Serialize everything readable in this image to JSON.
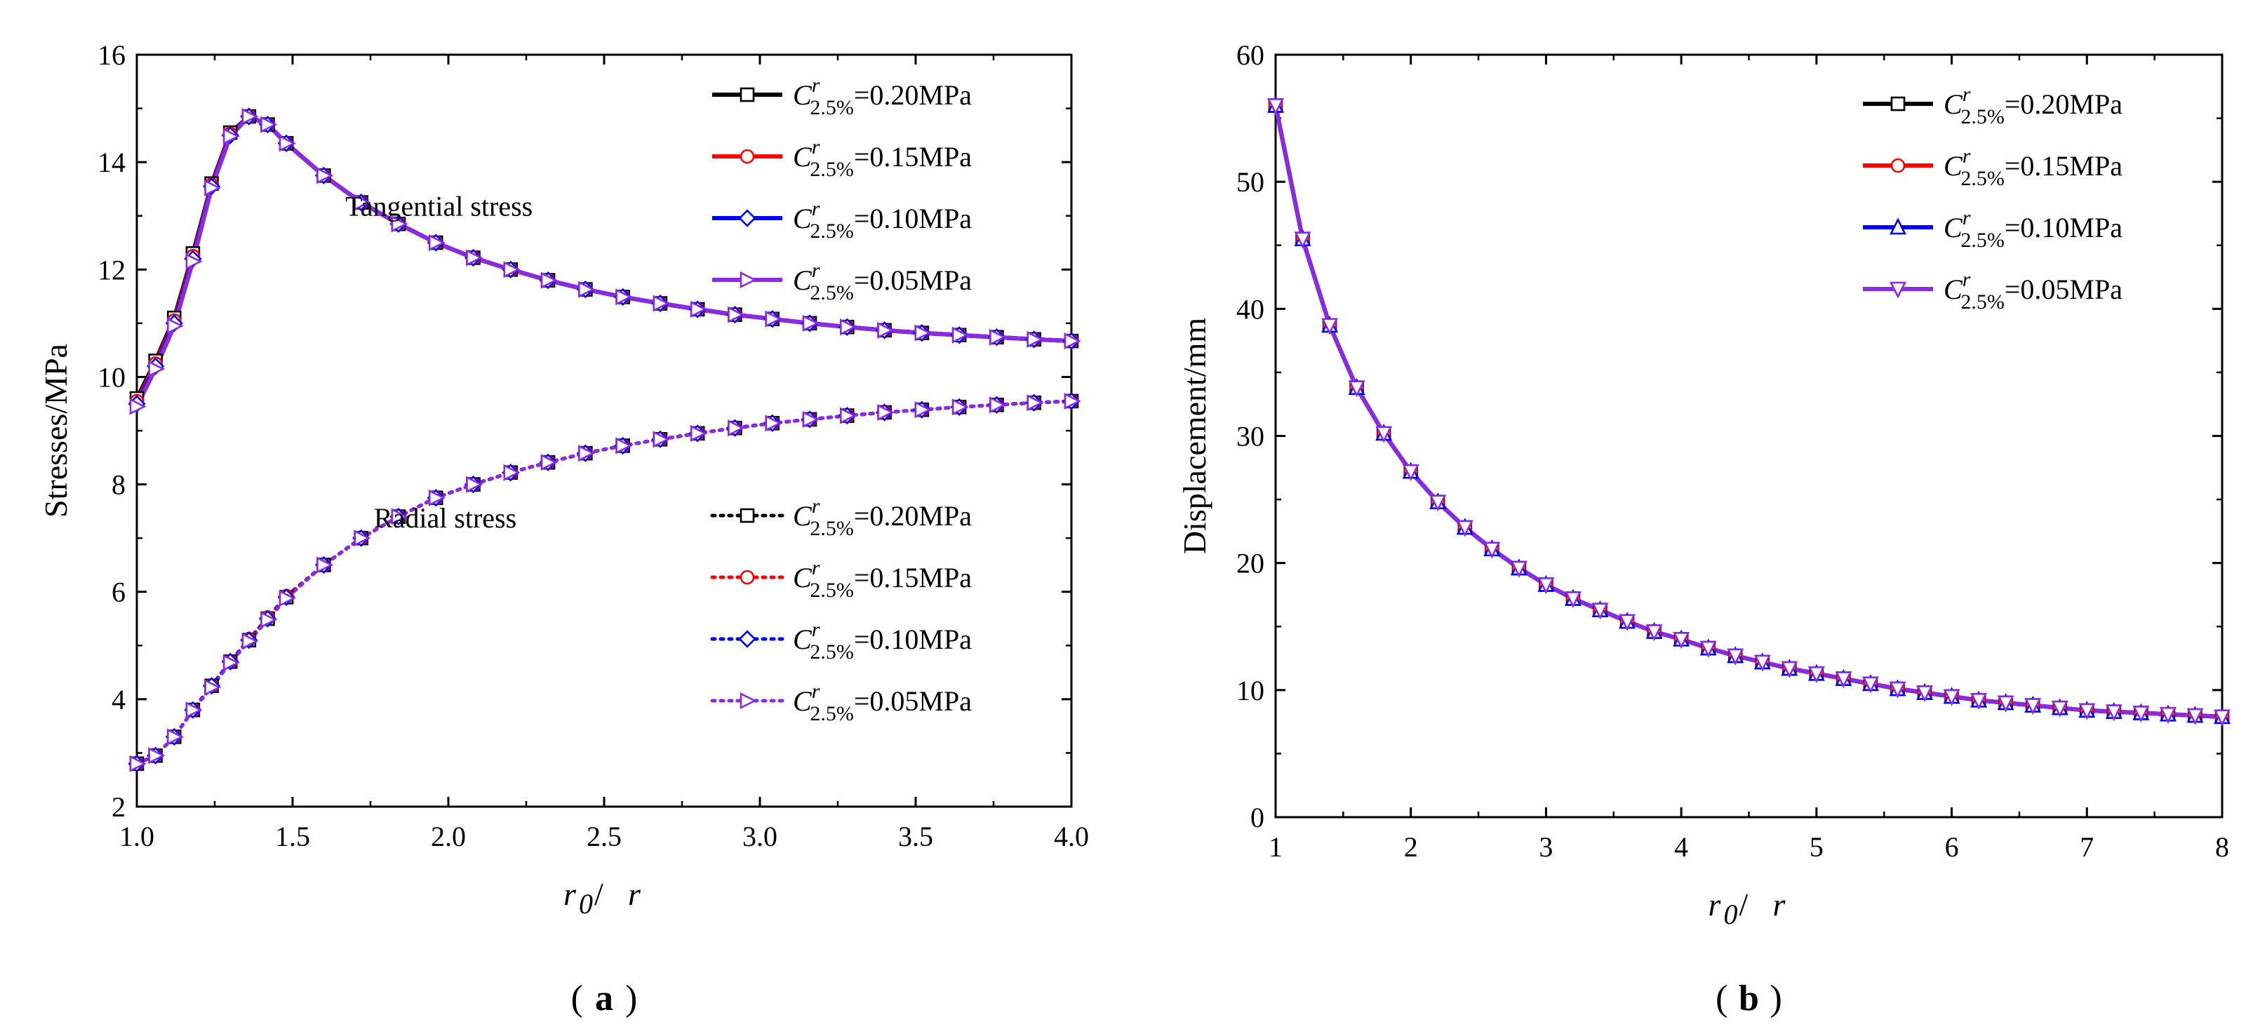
{
  "chart_data": [
    {
      "type": "line",
      "panel_label": "a",
      "xlabel_main": "r",
      "xlabel_sub": "0",
      "xlabel_sep": " / ",
      "xlabel_tail": "r",
      "ylabel": "Stresses/MPa",
      "xlim": [
        1.0,
        4.0
      ],
      "ylim": [
        2,
        16
      ],
      "xticks": [
        "1.0",
        "1.5",
        "2.0",
        "2.5",
        "3.0",
        "3.5",
        "4.0"
      ],
      "yticks": [
        "2",
        "4",
        "6",
        "8",
        "10",
        "12",
        "14",
        "16"
      ],
      "annotations": [
        {
          "text": "Tangential stress",
          "x": 1.97,
          "y": 13.0
        },
        {
          "text": "Radial stress",
          "x": 1.99,
          "y": 7.2
        }
      ],
      "x": [
        1.0,
        1.06,
        1.12,
        1.18,
        1.24,
        1.3,
        1.36,
        1.42,
        1.48,
        1.6,
        1.72,
        1.84,
        1.96,
        2.08,
        2.2,
        2.32,
        2.44,
        2.56,
        2.68,
        2.8,
        2.92,
        3.04,
        3.16,
        3.28,
        3.4,
        3.52,
        3.64,
        3.76,
        3.88,
        4.0
      ],
      "series": [
        {
          "name": "C_{2.5%}^r=0.20MPa",
          "group": "tangential",
          "color": "#000000",
          "marker": "square",
          "dash": "solid",
          "values": [
            9.6,
            10.3,
            11.1,
            12.3,
            13.6,
            14.55,
            14.85,
            14.7,
            14.35,
            13.75,
            13.25,
            12.85,
            12.5,
            12.22,
            12.0,
            11.8,
            11.63,
            11.49,
            11.37,
            11.26,
            11.16,
            11.08,
            11.0,
            10.93,
            10.87,
            10.82,
            10.78,
            10.74,
            10.7,
            10.67
          ]
        },
        {
          "name": "C_{2.5%}^r=0.15MPa",
          "group": "tangential",
          "color": "#ff0000",
          "marker": "circle",
          "dash": "solid",
          "values": [
            9.55,
            10.25,
            11.05,
            12.25,
            13.58,
            14.53,
            14.85,
            14.7,
            14.35,
            13.75,
            13.25,
            12.85,
            12.5,
            12.22,
            12.0,
            11.8,
            11.63,
            11.49,
            11.37,
            11.26,
            11.16,
            11.08,
            11.0,
            10.93,
            10.87,
            10.82,
            10.78,
            10.74,
            10.7,
            10.67
          ]
        },
        {
          "name": "C_{2.5%}^r=0.10MPa",
          "group": "tangential",
          "color": "#0000ff",
          "marker": "diamond",
          "dash": "solid",
          "values": [
            9.5,
            10.2,
            11.0,
            12.2,
            13.55,
            14.5,
            14.85,
            14.7,
            14.35,
            13.75,
            13.25,
            12.85,
            12.5,
            12.22,
            12.0,
            11.8,
            11.63,
            11.49,
            11.37,
            11.26,
            11.16,
            11.08,
            11.0,
            10.93,
            10.87,
            10.82,
            10.78,
            10.74,
            10.7,
            10.67
          ]
        },
        {
          "name": "C_{2.5%}^r=0.05MPa",
          "group": "tangential",
          "color": "#8a2be2",
          "marker": "triangle-right",
          "dash": "solid",
          "values": [
            9.45,
            10.15,
            10.95,
            12.15,
            13.52,
            14.48,
            14.85,
            14.7,
            14.35,
            13.75,
            13.25,
            12.85,
            12.5,
            12.22,
            12.0,
            11.8,
            11.63,
            11.49,
            11.37,
            11.26,
            11.16,
            11.08,
            11.0,
            10.93,
            10.87,
            10.82,
            10.78,
            10.74,
            10.7,
            10.67
          ]
        },
        {
          "name": "C_{2.5%}^r=0.20MPa",
          "group": "radial",
          "color": "#000000",
          "marker": "square",
          "dash": "dotted",
          "values": [
            2.8,
            2.95,
            3.3,
            3.8,
            4.25,
            4.7,
            5.1,
            5.5,
            5.9,
            6.5,
            7.0,
            7.4,
            7.75,
            8.0,
            8.22,
            8.41,
            8.58,
            8.72,
            8.84,
            8.95,
            9.05,
            9.14,
            9.21,
            9.28,
            9.34,
            9.39,
            9.44,
            9.48,
            9.52,
            9.55
          ]
        },
        {
          "name": "C_{2.5%}^r=0.15MPa",
          "group": "radial",
          "color": "#ff0000",
          "marker": "circle",
          "dash": "dotted",
          "values": [
            2.8,
            2.95,
            3.3,
            3.8,
            4.25,
            4.7,
            5.12,
            5.52,
            5.92,
            6.5,
            7.0,
            7.4,
            7.75,
            8.0,
            8.22,
            8.41,
            8.58,
            8.72,
            8.84,
            8.95,
            9.05,
            9.14,
            9.21,
            9.28,
            9.34,
            9.39,
            9.44,
            9.48,
            9.52,
            9.55
          ]
        },
        {
          "name": "C_{2.5%}^r=0.10MPa",
          "group": "radial",
          "color": "#0000ff",
          "marker": "diamond",
          "dash": "dotted",
          "values": [
            2.8,
            2.95,
            3.3,
            3.8,
            4.25,
            4.7,
            5.1,
            5.5,
            5.9,
            6.5,
            7.0,
            7.4,
            7.75,
            8.0,
            8.22,
            8.41,
            8.58,
            8.72,
            8.84,
            8.95,
            9.05,
            9.14,
            9.21,
            9.28,
            9.34,
            9.39,
            9.44,
            9.48,
            9.52,
            9.55
          ]
        },
        {
          "name": "C_{2.5%}^r=0.05MPa",
          "group": "radial",
          "color": "#8a2be2",
          "marker": "triangle-right",
          "dash": "dotted",
          "values": [
            2.8,
            2.95,
            3.3,
            3.8,
            4.22,
            4.68,
            5.08,
            5.48,
            5.88,
            6.5,
            7.0,
            7.4,
            7.75,
            8.0,
            8.22,
            8.41,
            8.58,
            8.72,
            8.84,
            8.95,
            9.05,
            9.14,
            9.21,
            9.28,
            9.34,
            9.39,
            9.44,
            9.48,
            9.52,
            9.55
          ]
        }
      ]
    },
    {
      "type": "line",
      "panel_label": "b",
      "xlabel_main": "r",
      "xlabel_sub": "0",
      "xlabel_sep": " / ",
      "xlabel_tail": "r",
      "ylabel": "Displacement/mm",
      "xlim": [
        1,
        8
      ],
      "ylim": [
        0,
        60
      ],
      "xticks": [
        "1",
        "2",
        "3",
        "4",
        "5",
        "6",
        "7",
        "8"
      ],
      "yticks": [
        "0",
        "10",
        "20",
        "30",
        "40",
        "50",
        "60"
      ],
      "x": [
        1.0,
        1.2,
        1.4,
        1.6,
        1.8,
        2.0,
        2.2,
        2.4,
        2.6,
        2.8,
        3.0,
        3.2,
        3.4,
        3.6,
        3.8,
        4.0,
        4.2,
        4.4,
        4.6,
        4.8,
        5.0,
        5.2,
        5.4,
        5.6,
        5.8,
        6.0,
        6.2,
        6.4,
        6.6,
        6.8,
        7.0,
        7.2,
        7.4,
        7.6,
        7.8,
        8.0
      ],
      "series": [
        {
          "name": "C_{2.5%}^r=0.20MPa",
          "color": "#000000",
          "marker": "square",
          "values": [
            56.0,
            45.5,
            38.7,
            33.8,
            30.2,
            27.2,
            24.8,
            22.8,
            21.1,
            19.6,
            18.3,
            17.2,
            16.3,
            15.4,
            14.6,
            14.0,
            13.3,
            12.7,
            12.2,
            11.7,
            11.3,
            10.9,
            10.5,
            10.1,
            9.8,
            9.5,
            9.2,
            9.0,
            8.8,
            8.6,
            8.4,
            8.3,
            8.2,
            8.1,
            8.0,
            7.9
          ]
        },
        {
          "name": "C_{2.5%}^r=0.15MPa",
          "color": "#ff0000",
          "marker": "circle",
          "values": [
            56.0,
            45.5,
            38.7,
            33.8,
            30.2,
            27.2,
            24.8,
            22.8,
            21.1,
            19.6,
            18.3,
            17.2,
            16.3,
            15.4,
            14.6,
            14.0,
            13.3,
            12.7,
            12.2,
            11.7,
            11.3,
            10.9,
            10.5,
            10.1,
            9.8,
            9.5,
            9.2,
            9.0,
            8.8,
            8.6,
            8.4,
            8.3,
            8.2,
            8.1,
            8.0,
            7.9
          ]
        },
        {
          "name": "C_{2.5%}^r=0.10MPa",
          "color": "#0000ff",
          "marker": "triangle-up",
          "values": [
            56.0,
            45.5,
            38.7,
            33.8,
            30.2,
            27.2,
            24.8,
            22.8,
            21.1,
            19.6,
            18.3,
            17.2,
            16.3,
            15.4,
            14.6,
            14.0,
            13.3,
            12.7,
            12.2,
            11.7,
            11.3,
            10.9,
            10.5,
            10.1,
            9.8,
            9.5,
            9.2,
            9.0,
            8.8,
            8.6,
            8.4,
            8.3,
            8.2,
            8.1,
            8.0,
            7.9
          ]
        },
        {
          "name": "C_{2.5%}^r=0.05MPa",
          "color": "#8a2be2",
          "marker": "triangle-down",
          "values": [
            56.0,
            45.5,
            38.7,
            33.8,
            30.2,
            27.2,
            24.8,
            22.8,
            21.1,
            19.6,
            18.3,
            17.2,
            16.3,
            15.4,
            14.6,
            14.0,
            13.3,
            12.7,
            12.2,
            11.7,
            11.3,
            10.9,
            10.5,
            10.1,
            9.8,
            9.5,
            9.2,
            9.0,
            8.8,
            8.6,
            8.4,
            8.3,
            8.2,
            8.1,
            8.0,
            7.9
          ]
        }
      ]
    }
  ]
}
